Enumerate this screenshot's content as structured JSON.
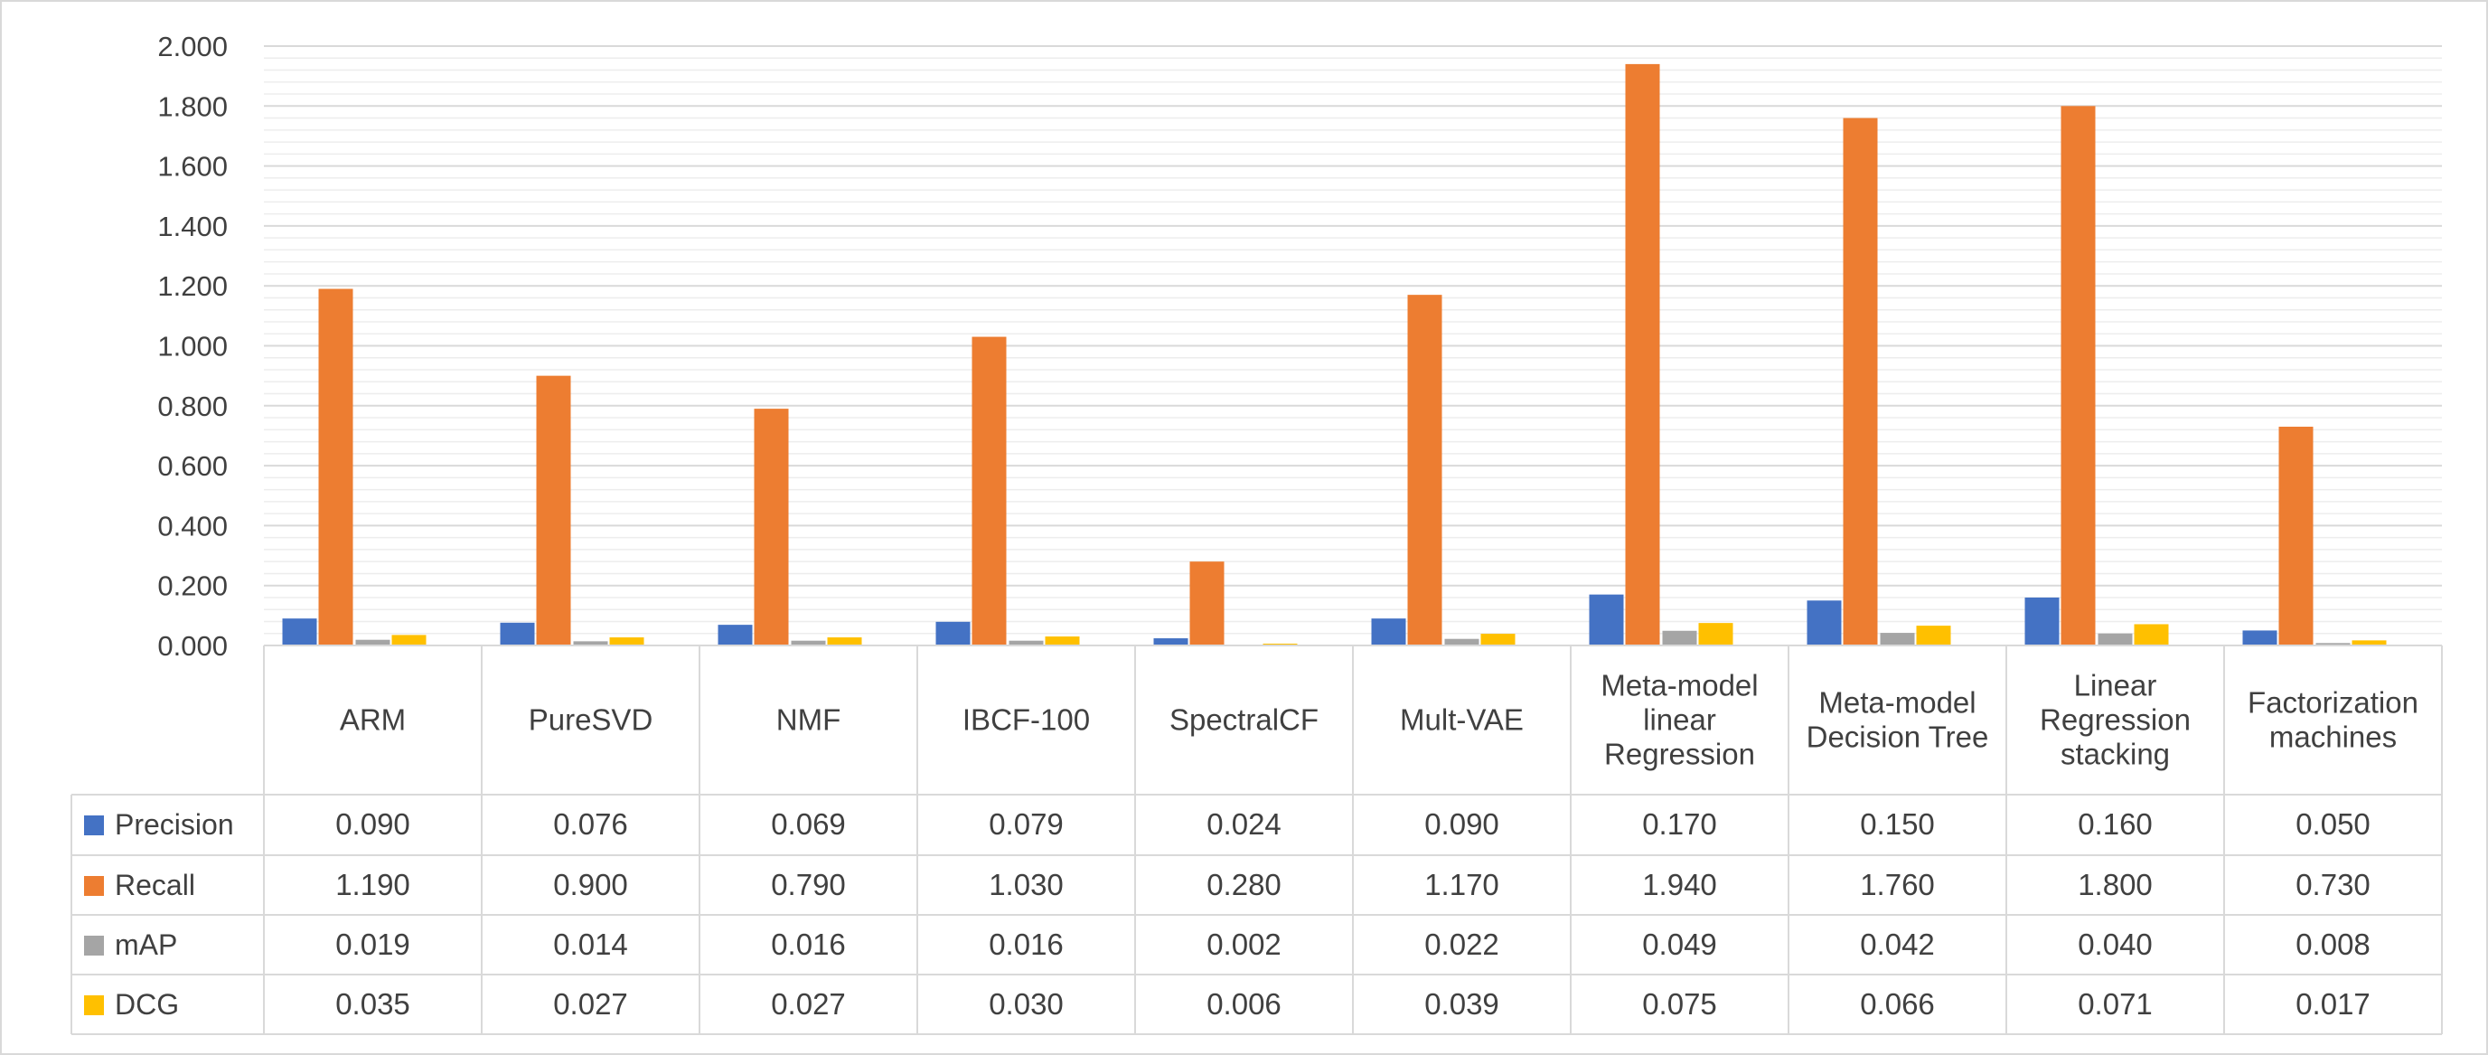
{
  "chart_data": {
    "type": "bar",
    "categories": [
      [
        "ARM"
      ],
      [
        "PureSVD"
      ],
      [
        "NMF"
      ],
      [
        "IBCF-100"
      ],
      [
        "SpectralCF"
      ],
      [
        "Mult-VAE"
      ],
      [
        "Meta-model",
        "linear",
        "Regression"
      ],
      [
        "Meta-model",
        "Decision Tree"
      ],
      [
        "Linear",
        "Regression",
        "stacking"
      ],
      [
        "Factorization",
        "machines"
      ]
    ],
    "series": [
      {
        "name": "Precision",
        "color": "#4472C4",
        "values": [
          0.09,
          0.076,
          0.069,
          0.079,
          0.024,
          0.09,
          0.17,
          0.15,
          0.16,
          0.05
        ],
        "labels": [
          "0.090",
          "0.076",
          "0.069",
          "0.079",
          "0.024",
          "0.090",
          "0.170",
          "0.150",
          "0.160",
          "0.050"
        ]
      },
      {
        "name": "Recall",
        "color": "#ED7D31",
        "values": [
          1.19,
          0.9,
          0.79,
          1.03,
          0.28,
          1.17,
          1.94,
          1.76,
          1.8,
          0.73
        ],
        "labels": [
          "1.190",
          "0.900",
          "0.790",
          "1.030",
          "0.280",
          "1.170",
          "1.940",
          "1.760",
          "1.800",
          "0.730"
        ]
      },
      {
        "name": "mAP",
        "color": "#A5A5A5",
        "values": [
          0.019,
          0.014,
          0.016,
          0.016,
          0.002,
          0.022,
          0.049,
          0.042,
          0.04,
          0.008
        ],
        "labels": [
          "0.019",
          "0.014",
          "0.016",
          "0.016",
          "0.002",
          "0.022",
          "0.049",
          "0.042",
          "0.040",
          "0.008"
        ]
      },
      {
        "name": "DCG",
        "color": "#FFC000",
        "values": [
          0.035,
          0.027,
          0.027,
          0.03,
          0.006,
          0.039,
          0.075,
          0.066,
          0.071,
          0.017
        ],
        "labels": [
          "0.035",
          "0.027",
          "0.027",
          "0.030",
          "0.006",
          "0.039",
          "0.075",
          "0.066",
          "0.071",
          "0.017"
        ]
      }
    ],
    "ylim": [
      0,
      2.0
    ],
    "yticks": [
      "0.000",
      "0.200",
      "0.400",
      "0.600",
      "0.800",
      "1.000",
      "1.200",
      "1.400",
      "1.600",
      "1.800",
      "2.000"
    ],
    "grid": true,
    "legend": "data-table-left",
    "title": "",
    "xlabel": "",
    "ylabel": ""
  }
}
